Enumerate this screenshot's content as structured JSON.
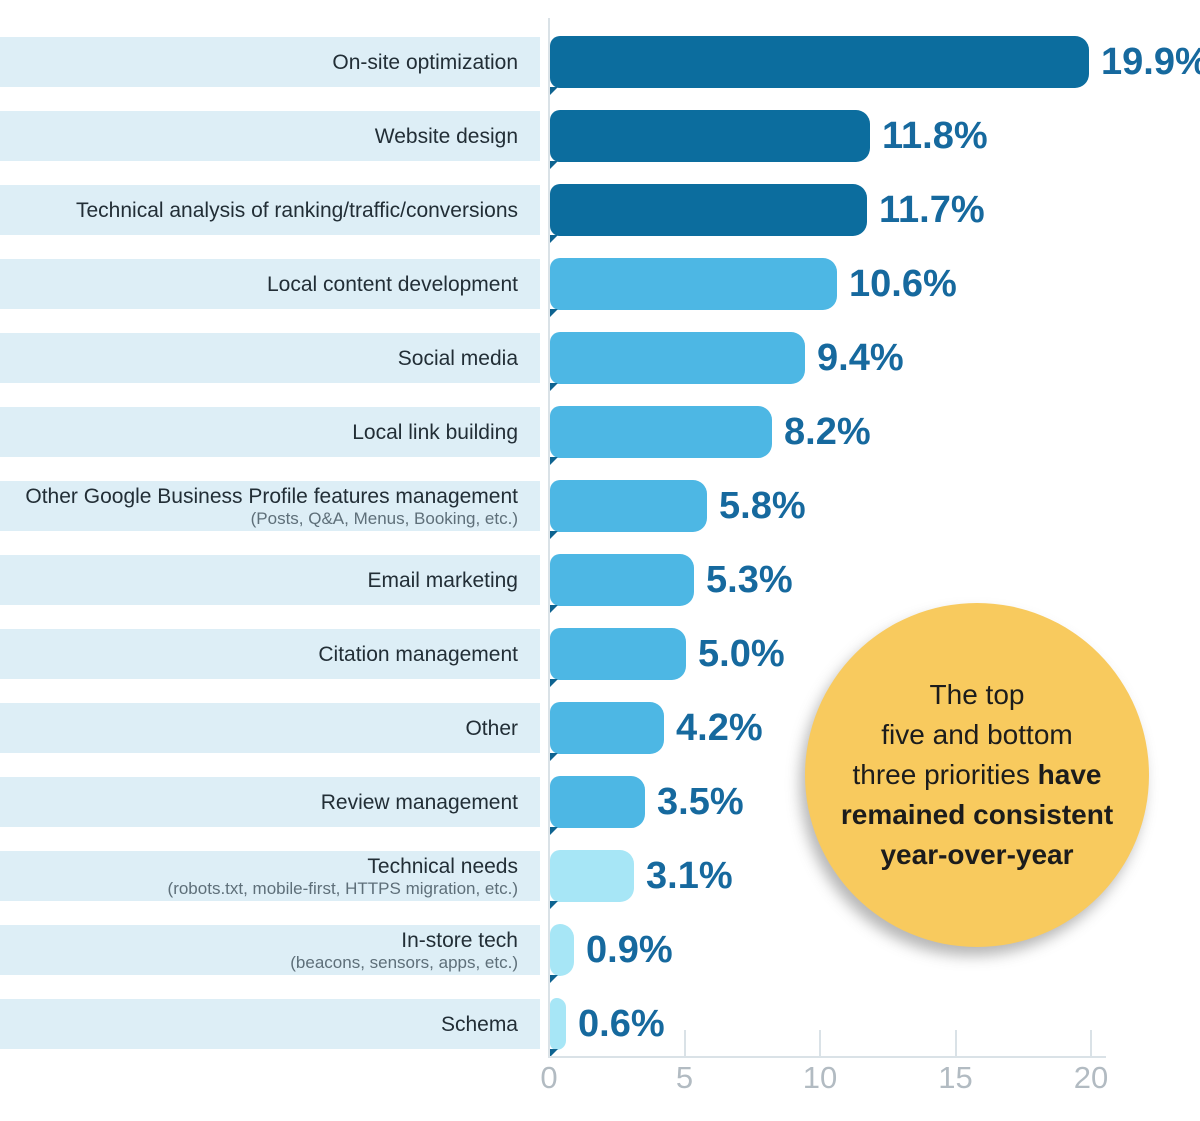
{
  "chart_data": {
    "type": "bar",
    "orientation": "horizontal",
    "title": "",
    "xlabel": "",
    "ylabel": "",
    "xlim": [
      0,
      20
    ],
    "x_ticks": [
      0,
      5,
      10,
      15,
      20
    ],
    "grid": "ticks-only",
    "legend": "none",
    "categories": [
      "On-site optimization",
      "Website design",
      "Technical analysis of ranking/traffic/conversions",
      "Local content development",
      "Social media",
      "Local link building",
      "Other Google Business Profile features management",
      "Email marketing",
      "Citation management",
      "Other",
      "Review management",
      "Technical needs",
      "In-store tech",
      "Schema"
    ],
    "subcategories": [
      "",
      "",
      "",
      "",
      "",
      "",
      "(Posts, Q&A, Menus, Booking, etc.)",
      "",
      "",
      "",
      "",
      "(robots.txt, mobile-first, HTTPS migration, etc.)",
      "(beacons, sensors, apps, etc.)",
      ""
    ],
    "values": [
      19.9,
      11.8,
      11.7,
      10.6,
      9.4,
      8.2,
      5.8,
      5.3,
      5.0,
      4.2,
      3.5,
      3.1,
      0.9,
      0.6
    ],
    "value_labels": [
      "19.9%",
      "11.8%",
      "11.7%",
      "10.6%",
      "9.4%",
      "8.2%",
      "5.8%",
      "5.3%",
      "5.0%",
      "4.2%",
      "3.5%",
      "3.1%",
      "0.9%",
      "0.6%"
    ],
    "bar_colors": [
      "#0c6d9e",
      "#0c6d9e",
      "#0c6d9e",
      "#4db7e4",
      "#4db7e4",
      "#4db7e4",
      "#4db7e4",
      "#4db7e4",
      "#4db7e4",
      "#4db7e4",
      "#4db7e4",
      "#a7e6f6",
      "#a7e6f6",
      "#a7e6f6"
    ]
  },
  "callout": {
    "line1": "The top",
    "line2": "five and bottom",
    "line3_regular": "three priorities ",
    "line3_bold": "have",
    "line4_bold": "remained consistent",
    "line5_bold": "year-over-year",
    "bg_color": "#f8ca5e"
  },
  "colors": {
    "bar_dark": "#0c6d9e",
    "bar_medium": "#4db7e4",
    "bar_light": "#a7e6f6",
    "label_band": "#ddeef6",
    "value_text": "#16699e",
    "label_text": "#222e36",
    "sublabel_text": "#5e6f79",
    "axis_line": "#dae2e7",
    "axis_text": "#b2bbc2",
    "callout_bg": "#f8ca5e",
    "callout_text": "#1c1c1c"
  }
}
